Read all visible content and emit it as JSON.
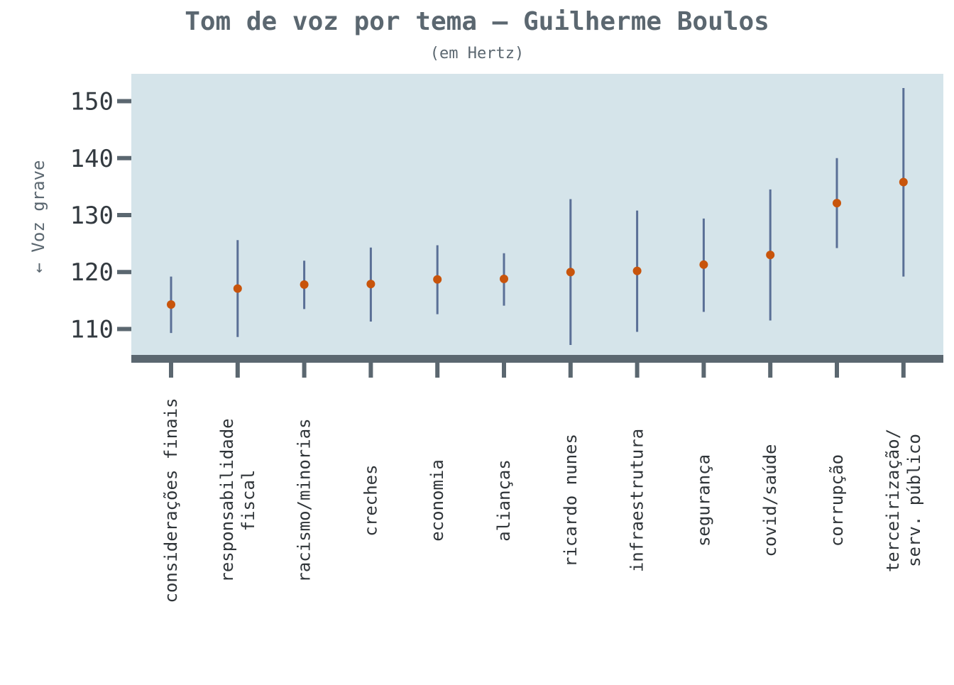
{
  "chart_data": {
    "type": "scatter",
    "title": "Tom de voz por tema – Guilherme Boulos",
    "subtitle": "(em Hertz)",
    "ylabel": "← Voz grave",
    "xlabel": "",
    "ylim": [
      105.2,
      154.8
    ],
    "yticks": [
      110,
      120,
      130,
      140,
      150
    ],
    "grid": false,
    "legend": "none",
    "colors": {
      "panel_background": "#d5e4ea",
      "axis": "#5b6770",
      "point": "#c8540b",
      "error_bar": "#5a6f96"
    },
    "categories": [
      [
        "considerações finais"
      ],
      [
        "responsabilidade",
        "fiscal"
      ],
      [
        "racismo/minorias"
      ],
      [
        "creches"
      ],
      [
        "economia"
      ],
      [
        "alianças"
      ],
      [
        "ricardo nunes"
      ],
      [
        "infraestrutura"
      ],
      [
        "segurança"
      ],
      [
        "covid/saúde"
      ],
      [
        "corrupção"
      ],
      [
        "terceirização/",
        "serv. público"
      ]
    ],
    "series": [
      {
        "values": [
          114.3,
          117.1,
          117.8,
          117.9,
          118.7,
          118.8,
          120.0,
          120.2,
          121.3,
          123.0,
          132.1,
          135.8
        ],
        "lower": [
          109.3,
          108.6,
          113.5,
          111.3,
          112.6,
          114.1,
          107.2,
          109.5,
          113.0,
          111.5,
          124.2,
          119.2
        ],
        "upper": [
          119.2,
          125.6,
          122.0,
          124.3,
          124.7,
          123.3,
          132.8,
          130.8,
          129.4,
          134.5,
          140.0,
          152.3
        ]
      }
    ]
  }
}
